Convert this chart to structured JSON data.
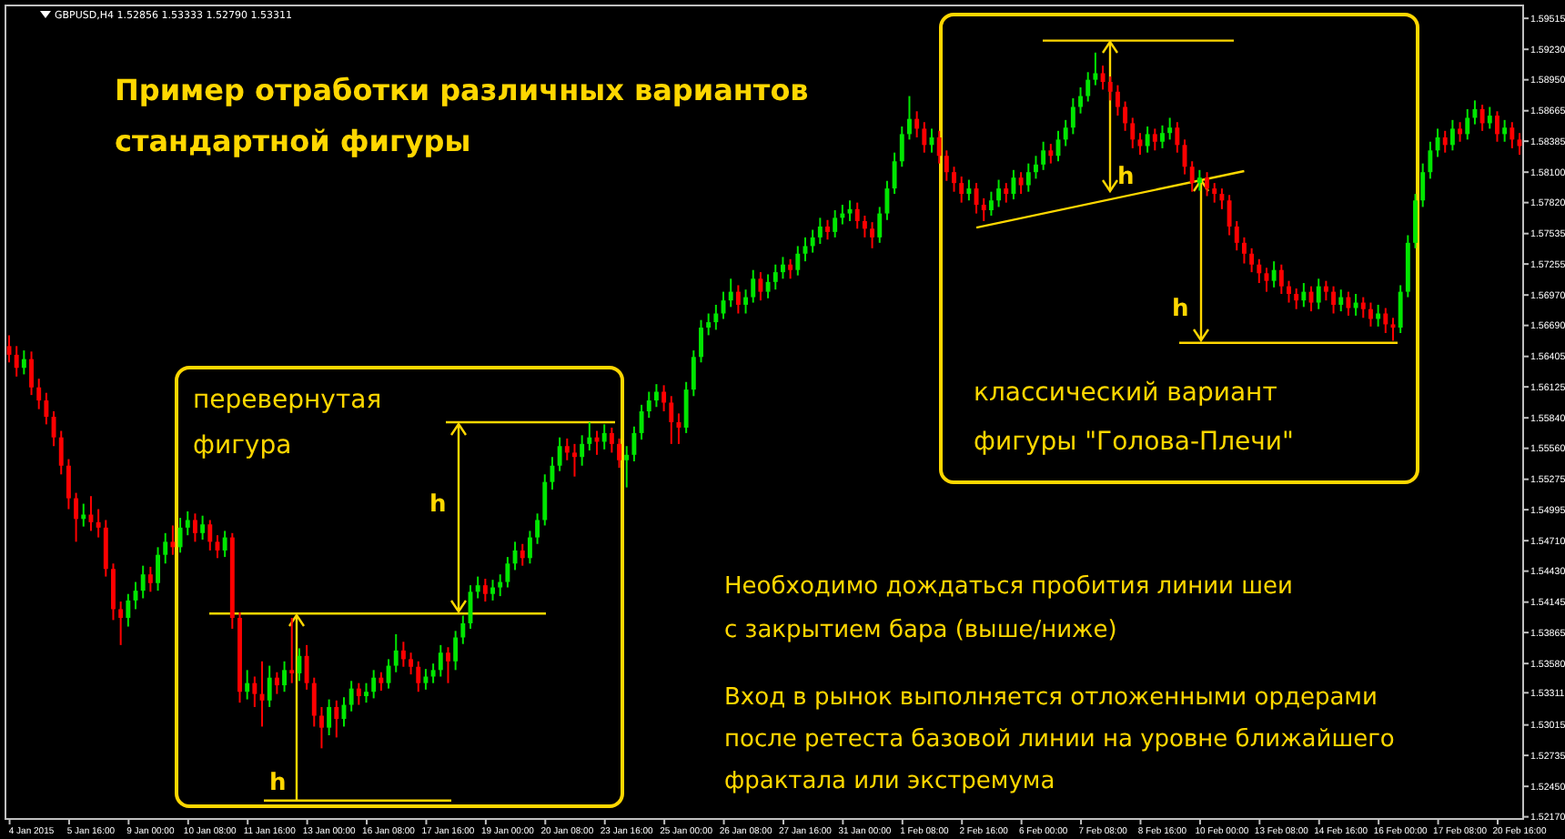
{
  "chart_data": {
    "type": "candlestick",
    "title": "Пример отработки различных вариантов\nстандартной фигуры",
    "annotations": [
      "GBPUSD,H4  1.52856 1.53333 1.52790 1.53311",
      "перевернутая\nфигура",
      "классический вариант\nфигуры \"Голова-Плечи\"",
      "Необходимо дождаться пробития линии шеи\nс закрытием бара (выше/ниже)",
      "Вход в рынок выполняется отложенными ордерами\nпосле ретеста базовой линии на уровне ближайшего\nфрактала или экстремума",
      "h",
      {
        "text": "h",
        "y": 1.5232
      },
      {
        "text": "h",
        "y": 1.5784
      },
      {
        "text": "h",
        "y": 1.5653
      }
    ],
    "series": [
      {
        "type": "line",
        "color": "#ffd700",
        "values": [
          null,
          null,
          null,
          null,
          null,
          null,
          null,
          null,
          null,
          null,
          null,
          null,
          null,
          null,
          null,
          null,
          null,
          null,
          null,
          null,
          null,
          null,
          null,
          null,
          null,
          null,
          null,
          null,
          null,
          null,
          null,
          null,
          null,
          null,
          null,
          null,
          null,
          null,
          null,
          null,
          null,
          null,
          null,
          null,
          null,
          null,
          null,
          null,
          null,
          null,
          null,
          null,
          null,
          null,
          null,
          null,
          null,
          null,
          null,
          null,
          null,
          null,
          null,
          null,
          null,
          null,
          null,
          null,
          null,
          null,
          null,
          null,
          null,
          null,
          null,
          null,
          null,
          null,
          null,
          null,
          null,
          null,
          null,
          null,
          null,
          null,
          null,
          null,
          null,
          null,
          null,
          null,
          null,
          null,
          null,
          null,
          null,
          null,
          null,
          null,
          null,
          null,
          null,
          null,
          null,
          null,
          null,
          null,
          null,
          null,
          null,
          null,
          null,
          null,
          null,
          null,
          null,
          null,
          null,
          null,
          null,
          null,
          null,
          null,
          null,
          null,
          null,
          null,
          null,
          null,
          1.5759,
          null,
          null,
          null,
          null,
          null,
          null,
          null,
          null,
          null,
          null,
          null,
          null,
          null,
          null,
          null,
          null,
          null,
          null,
          null,
          null,
          null,
          null,
          null,
          null,
          null,
          null,
          null,
          null,
          null,
          null,
          null,
          null,
          null,
          null,
          null,
          1.5811,
          null,
          null,
          null,
          null,
          null,
          null,
          null,
          null,
          null,
          null,
          null,
          null,
          null,
          null,
          null,
          null,
          null,
          null,
          null,
          null,
          null,
          null,
          null,
          null,
          null,
          null,
          null,
          null,
          null,
          null,
          null,
          null,
          null,
          null,
          null,
          null,
          null
        ]
      }
    ],
    "categories": [
      null,
      null,
      null,
      "4 Jan 2015",
      null,
      null,
      null,
      null,
      null,
      null,
      null,
      "5 Jan 16:00",
      null,
      null,
      null,
      null,
      null,
      null,
      null,
      "9 Jan 00:00",
      null,
      null,
      null,
      null,
      null,
      null,
      null,
      "10 Jan 08:00",
      null,
      null,
      null,
      null,
      null,
      null,
      null,
      "11 Jan 16:00",
      null,
      null,
      null,
      null,
      null,
      null,
      null,
      "13 Jan 00:00",
      null,
      null,
      null,
      null,
      null,
      null,
      null,
      "16 Jan 08:00",
      null,
      null,
      null,
      null,
      null,
      null,
      null,
      "17 Jan 16:00",
      null,
      null,
      null,
      null,
      null,
      null,
      null,
      "19 Jan 00:00",
      null,
      null,
      null,
      null,
      null,
      null,
      null,
      "20 Jan 08:00",
      null,
      null,
      null,
      null,
      null,
      null,
      null,
      "23 Jan 16:00",
      null,
      null,
      null,
      null,
      null,
      null,
      null,
      "25 Jan 00:00",
      null,
      null,
      null,
      null,
      null,
      null,
      null,
      "26 Jan 08:00",
      null,
      null,
      null,
      null,
      null,
      null,
      null,
      "27 Jan 16:00",
      null,
      null,
      null,
      null,
      null,
      null,
      null,
      "31 Jan 00:00",
      null,
      null,
      null,
      null,
      null,
      null,
      null,
      "1 Feb 08:00",
      null,
      null,
      null,
      null,
      null,
      null,
      null,
      "2 Feb 16:00",
      null,
      null,
      null,
      null,
      null,
      null,
      null,
      "6 Feb 00:00",
      null,
      null,
      null,
      null,
      null,
      null,
      null,
      "7 Feb 08:00",
      null,
      null,
      null,
      null,
      null,
      null,
      null,
      "8 Feb 16:00",
      null,
      null,
      null,
      null,
      null,
      null,
      null,
      "10 Feb 00:00",
      null,
      null,
      null,
      null,
      null,
      null,
      null,
      "13 Feb 08:00",
      null,
      null,
      null,
      null,
      null,
      null,
      null,
      "14 Feb 16:00",
      null,
      null,
      null,
      null,
      null,
      null,
      null,
      "16 Feb 00:00",
      null,
      null,
      null,
      null,
      null,
      null,
      null,
      "17 Feb 08:00",
      null,
      null,
      null,
      null,
      null,
      null,
      null,
      "20 Feb 16:00"
    ],
    "ohlc": [
      [
        1.565,
        1.566,
        1.5635,
        1.5642
      ],
      [
        1.5642,
        1.565,
        1.5622,
        1.563
      ],
      [
        1.563,
        1.5646,
        1.5624,
        1.5638
      ],
      [
        1.5638,
        1.5645,
        1.5605,
        1.5612
      ],
      [
        1.5612,
        1.562,
        1.5592,
        1.56
      ],
      [
        1.56,
        1.5607,
        1.5578,
        1.5585
      ],
      [
        1.5585,
        1.559,
        1.5558,
        1.5566
      ],
      [
        1.5566,
        1.5572,
        1.5532,
        1.554
      ],
      [
        1.554,
        1.5546,
        1.55,
        1.551
      ],
      [
        1.551,
        1.5515,
        1.547,
        1.5491
      ],
      [
        1.5491,
        1.5505,
        1.5484,
        1.5495
      ],
      [
        1.5495,
        1.5512,
        1.548,
        1.5488
      ],
      [
        1.5488,
        1.55,
        1.5474,
        1.5483
      ],
      [
        1.5483,
        1.549,
        1.5438,
        1.5445
      ],
      [
        1.5445,
        1.545,
        1.5398,
        1.5408
      ],
      [
        1.5408,
        1.5415,
        1.5375,
        1.54
      ],
      [
        1.54,
        1.5422,
        1.5392,
        1.5416
      ],
      [
        1.5416,
        1.5433,
        1.5408,
        1.5425
      ],
      [
        1.5425,
        1.5448,
        1.5418,
        1.544
      ],
      [
        1.544,
        1.5447,
        1.5424,
        1.5432
      ],
      [
        1.5432,
        1.5465,
        1.5425,
        1.5458
      ],
      [
        1.5458,
        1.5478,
        1.545,
        1.547
      ],
      [
        1.547,
        1.5485,
        1.5458,
        1.5465
      ],
      [
        1.5465,
        1.5492,
        1.546,
        1.5483
      ],
      [
        1.5483,
        1.5498,
        1.5476,
        1.549
      ],
      [
        1.549,
        1.5496,
        1.547,
        1.5478
      ],
      [
        1.5478,
        1.5494,
        1.5472,
        1.5486
      ],
      [
        1.5486,
        1.549,
        1.5462,
        1.547
      ],
      [
        1.547,
        1.5476,
        1.5455,
        1.5462
      ],
      [
        1.5462,
        1.548,
        1.5456,
        1.5474
      ],
      [
        1.5474,
        1.5478,
        1.539,
        1.54
      ],
      [
        1.54,
        1.5405,
        1.5322,
        1.5332
      ],
      [
        1.5332,
        1.5352,
        1.5325,
        1.534
      ],
      [
        1.534,
        1.5346,
        1.5318,
        1.533
      ],
      [
        1.533,
        1.536,
        1.53,
        1.5324
      ],
      [
        1.5324,
        1.5356,
        1.5318,
        1.5345
      ],
      [
        1.5345,
        1.535,
        1.533,
        1.5338
      ],
      [
        1.5338,
        1.536,
        1.5332,
        1.5352
      ],
      [
        1.5352,
        1.54,
        1.534,
        1.5349
      ],
      [
        1.5349,
        1.5372,
        1.5342,
        1.5365
      ],
      [
        1.5365,
        1.5375,
        1.5334,
        1.534
      ],
      [
        1.534,
        1.5345,
        1.53,
        1.531
      ],
      [
        1.531,
        1.5318,
        1.528,
        1.5299
      ],
      [
        1.5299,
        1.5325,
        1.5292,
        1.5318
      ],
      [
        1.5318,
        1.5324,
        1.529,
        1.5307
      ],
      [
        1.5307,
        1.5327,
        1.53,
        1.532
      ],
      [
        1.532,
        1.5342,
        1.5314,
        1.5335
      ],
      [
        1.5335,
        1.534,
        1.532,
        1.5328
      ],
      [
        1.5328,
        1.534,
        1.5322,
        1.5332
      ],
      [
        1.5332,
        1.5352,
        1.5326,
        1.5345
      ],
      [
        1.5345,
        1.535,
        1.5333,
        1.534
      ],
      [
        1.534,
        1.5362,
        1.5335,
        1.5356
      ],
      [
        1.5356,
        1.5385,
        1.535,
        1.537
      ],
      [
        1.537,
        1.5378,
        1.5355,
        1.5362
      ],
      [
        1.5362,
        1.5368,
        1.5348,
        1.5355
      ],
      [
        1.5355,
        1.536,
        1.5332,
        1.534
      ],
      [
        1.534,
        1.5353,
        1.5334,
        1.5346
      ],
      [
        1.5346,
        1.5358,
        1.534,
        1.5352
      ],
      [
        1.5352,
        1.5375,
        1.5346,
        1.5368
      ],
      [
        1.5368,
        1.5373,
        1.534,
        1.536
      ],
      [
        1.536,
        1.5388,
        1.5352,
        1.5382
      ],
      [
        1.5382,
        1.5402,
        1.5376,
        1.5395
      ],
      [
        1.5395,
        1.543,
        1.539,
        1.5424
      ],
      [
        1.5424,
        1.5438,
        1.5418,
        1.543
      ],
      [
        1.543,
        1.5436,
        1.5415,
        1.5422
      ],
      [
        1.5422,
        1.5435,
        1.5416,
        1.5428
      ],
      [
        1.5428,
        1.544,
        1.542,
        1.5433
      ],
      [
        1.5433,
        1.5456,
        1.5428,
        1.545
      ],
      [
        1.545,
        1.547,
        1.5444,
        1.5462
      ],
      [
        1.5462,
        1.5468,
        1.5448,
        1.5455
      ],
      [
        1.5455,
        1.548,
        1.545,
        1.5474
      ],
      [
        1.5474,
        1.5496,
        1.5468,
        1.549
      ],
      [
        1.549,
        1.5532,
        1.5485,
        1.5525
      ],
      [
        1.5525,
        1.5548,
        1.5518,
        1.554
      ],
      [
        1.554,
        1.5566,
        1.5535,
        1.5558
      ],
      [
        1.5558,
        1.5565,
        1.5545,
        1.5552
      ],
      [
        1.5552,
        1.556,
        1.553,
        1.5548
      ],
      [
        1.5548,
        1.5568,
        1.554,
        1.556
      ],
      [
        1.556,
        1.558,
        1.5554,
        1.5566
      ],
      [
        1.5566,
        1.5572,
        1.555,
        1.5562
      ],
      [
        1.5562,
        1.5578,
        1.5555,
        1.557
      ],
      [
        1.557,
        1.5575,
        1.5552,
        1.556
      ],
      [
        1.556,
        1.5565,
        1.5538,
        1.5545
      ],
      [
        1.5545,
        1.5558,
        1.552,
        1.555
      ],
      [
        1.555,
        1.5576,
        1.5544,
        1.557
      ],
      [
        1.557,
        1.5596,
        1.5564,
        1.559
      ],
      [
        1.559,
        1.5608,
        1.5584,
        1.56
      ],
      [
        1.56,
        1.5615,
        1.5594,
        1.5608
      ],
      [
        1.5608,
        1.5614,
        1.559,
        1.5598
      ],
      [
        1.5598,
        1.5604,
        1.556,
        1.558
      ],
      [
        1.558,
        1.5588,
        1.556,
        1.5575
      ],
      [
        1.5575,
        1.5617,
        1.557,
        1.561
      ],
      [
        1.561,
        1.5646,
        1.5604,
        1.564
      ],
      [
        1.564,
        1.5674,
        1.5635,
        1.5667
      ],
      [
        1.5667,
        1.568,
        1.566,
        1.5672
      ],
      [
        1.5672,
        1.5688,
        1.5665,
        1.568
      ],
      [
        1.568,
        1.57,
        1.5675,
        1.5692
      ],
      [
        1.5692,
        1.5712,
        1.5686,
        1.57
      ],
      [
        1.57,
        1.5706,
        1.568,
        1.5688
      ],
      [
        1.5688,
        1.5702,
        1.568,
        1.5695
      ],
      [
        1.5695,
        1.572,
        1.569,
        1.5712
      ],
      [
        1.5712,
        1.5718,
        1.5692,
        1.57
      ],
      [
        1.57,
        1.5716,
        1.5694,
        1.5709
      ],
      [
        1.5709,
        1.5725,
        1.5702,
        1.5718
      ],
      [
        1.5718,
        1.5732,
        1.5712,
        1.5725
      ],
      [
        1.5725,
        1.573,
        1.5712,
        1.572
      ],
      [
        1.572,
        1.5742,
        1.5715,
        1.5735
      ],
      [
        1.5735,
        1.575,
        1.5728,
        1.5742
      ],
      [
        1.5742,
        1.5757,
        1.5736,
        1.575
      ],
      [
        1.575,
        1.5768,
        1.5744,
        1.576
      ],
      [
        1.576,
        1.5766,
        1.5748,
        1.5755
      ],
      [
        1.5755,
        1.5775,
        1.575,
        1.5768
      ],
      [
        1.5768,
        1.578,
        1.5762,
        1.5772
      ],
      [
        1.5772,
        1.5784,
        1.5765,
        1.5776
      ],
      [
        1.5776,
        1.5782,
        1.5758,
        1.5765
      ],
      [
        1.5765,
        1.577,
        1.575,
        1.5758
      ],
      [
        1.5758,
        1.5764,
        1.574,
        1.575
      ],
      [
        1.575,
        1.5778,
        1.5745,
        1.5772
      ],
      [
        1.5772,
        1.5802,
        1.5766,
        1.5795
      ],
      [
        1.5795,
        1.5828,
        1.579,
        1.582
      ],
      [
        1.582,
        1.5852,
        1.5815,
        1.5845
      ],
      [
        1.5845,
        1.588,
        1.584,
        1.5859
      ],
      [
        1.5859,
        1.5866,
        1.5842,
        1.585
      ],
      [
        1.585,
        1.5856,
        1.5828,
        1.5835
      ],
      [
        1.5835,
        1.585,
        1.5828,
        1.5842
      ],
      [
        1.5842,
        1.5848,
        1.5818,
        1.5825
      ],
      [
        1.5825,
        1.583,
        1.5802,
        1.581
      ],
      [
        1.581,
        1.5815,
        1.5792,
        1.58
      ],
      [
        1.58,
        1.5806,
        1.5782,
        1.579
      ],
      [
        1.579,
        1.5803,
        1.5784,
        1.5795
      ],
      [
        1.5795,
        1.58,
        1.5772,
        1.578
      ],
      [
        1.578,
        1.5786,
        1.5765,
        1.5775
      ],
      [
        1.5775,
        1.5792,
        1.577,
        1.5784
      ],
      [
        1.5784,
        1.5803,
        1.5778,
        1.5795
      ],
      [
        1.5795,
        1.58,
        1.5782,
        1.579
      ],
      [
        1.579,
        1.5812,
        1.5785,
        1.5805
      ],
      [
        1.5805,
        1.581,
        1.579,
        1.5798
      ],
      [
        1.5798,
        1.5818,
        1.5792,
        1.581
      ],
      [
        1.581,
        1.5825,
        1.5804,
        1.5817
      ],
      [
        1.5817,
        1.5838,
        1.5812,
        1.583
      ],
      [
        1.583,
        1.5836,
        1.5818,
        1.5825
      ],
      [
        1.5825,
        1.5848,
        1.582,
        1.584
      ],
      [
        1.584,
        1.5858,
        1.5834,
        1.5851
      ],
      [
        1.5851,
        1.5878,
        1.5845,
        1.587
      ],
      [
        1.587,
        1.5888,
        1.5864,
        1.588
      ],
      [
        1.588,
        1.5902,
        1.5875,
        1.5895
      ],
      [
        1.5895,
        1.592,
        1.589,
        1.5901
      ],
      [
        1.5901,
        1.5908,
        1.5886,
        1.5893
      ],
      [
        1.5893,
        1.5898,
        1.5876,
        1.5884
      ],
      [
        1.5884,
        1.589,
        1.5862,
        1.587
      ],
      [
        1.587,
        1.5875,
        1.5848,
        1.5855
      ],
      [
        1.5855,
        1.586,
        1.5832,
        1.584
      ],
      [
        1.584,
        1.5846,
        1.5826,
        1.5834
      ],
      [
        1.5834,
        1.5852,
        1.5828,
        1.5845
      ],
      [
        1.5845,
        1.585,
        1.583,
        1.5838
      ],
      [
        1.5838,
        1.5853,
        1.5832,
        1.5846
      ],
      [
        1.5846,
        1.586,
        1.584,
        1.5851
      ],
      [
        1.5851,
        1.5856,
        1.5828,
        1.5835
      ],
      [
        1.5835,
        1.584,
        1.5808,
        1.5815
      ],
      [
        1.5815,
        1.582,
        1.5792,
        1.58
      ],
      [
        1.58,
        1.5812,
        1.5793,
        1.5805
      ],
      [
        1.5805,
        1.581,
        1.5788,
        1.5795
      ],
      [
        1.5795,
        1.58,
        1.5782,
        1.579
      ],
      [
        1.579,
        1.5795,
        1.5776,
        1.5784
      ],
      [
        1.5784,
        1.5789,
        1.5752,
        1.576
      ],
      [
        1.576,
        1.5765,
        1.5738,
        1.5745
      ],
      [
        1.5745,
        1.575,
        1.5726,
        1.5735
      ],
      [
        1.5735,
        1.574,
        1.5718,
        1.5725
      ],
      [
        1.5725,
        1.573,
        1.5708,
        1.5717
      ],
      [
        1.5717,
        1.5722,
        1.57,
        1.571
      ],
      [
        1.571,
        1.5728,
        1.5704,
        1.572
      ],
      [
        1.572,
        1.5725,
        1.5698,
        1.5705
      ],
      [
        1.5705,
        1.571,
        1.569,
        1.5698
      ],
      [
        1.5698,
        1.5703,
        1.5684,
        1.5692
      ],
      [
        1.5692,
        1.5708,
        1.5686,
        1.57
      ],
      [
        1.57,
        1.5705,
        1.5682,
        1.569
      ],
      [
        1.569,
        1.5712,
        1.5684,
        1.5705
      ],
      [
        1.5705,
        1.571,
        1.5692,
        1.57
      ],
      [
        1.57,
        1.5705,
        1.568,
        1.5688
      ],
      [
        1.5688,
        1.5702,
        1.5682,
        1.5695
      ],
      [
        1.5695,
        1.57,
        1.5678,
        1.5685
      ],
      [
        1.5685,
        1.5698,
        1.5678,
        1.569
      ],
      [
        1.569,
        1.5695,
        1.5676,
        1.5684
      ],
      [
        1.5684,
        1.569,
        1.5668,
        1.5675
      ],
      [
        1.5675,
        1.5688,
        1.5668,
        1.568
      ],
      [
        1.568,
        1.5685,
        1.5662,
        1.567
      ],
      [
        1.567,
        1.5676,
        1.5655,
        1.5667
      ],
      [
        1.5667,
        1.5706,
        1.5662,
        1.57
      ],
      [
        1.57,
        1.5752,
        1.5695,
        1.5745
      ],
      [
        1.5745,
        1.579,
        1.574,
        1.5784
      ],
      [
        1.5784,
        1.5818,
        1.5778,
        1.581
      ],
      [
        1.581,
        1.5838,
        1.5804,
        1.583
      ],
      [
        1.583,
        1.585,
        1.5824,
        1.5842
      ],
      [
        1.5842,
        1.5848,
        1.5828,
        1.5835
      ],
      [
        1.5835,
        1.5858,
        1.583,
        1.585
      ],
      [
        1.585,
        1.5856,
        1.5838,
        1.5845
      ],
      [
        1.5845,
        1.5868,
        1.584,
        1.586
      ],
      [
        1.586,
        1.5876,
        1.5854,
        1.5868
      ],
      [
        1.5868,
        1.5872,
        1.5848,
        1.5855
      ],
      [
        1.5855,
        1.587,
        1.585,
        1.5862
      ],
      [
        1.5862,
        1.5866,
        1.5838,
        1.5845
      ],
      [
        1.5845,
        1.5858,
        1.5838,
        1.5851
      ],
      [
        1.5851,
        1.5856,
        1.5832,
        1.584
      ],
      [
        1.584,
        1.5846,
        1.5826,
        1.5834
      ]
    ],
    "ylim": [
      1.5215,
      1.596
    ],
    "yticks": [
      {
        "value": 1.59515,
        "label": "1.59515"
      },
      {
        "value": 1.5923,
        "label": "1.59230"
      },
      {
        "value": 1.5895,
        "label": "1.58950"
      },
      {
        "value": 1.58665,
        "label": "1.58665"
      },
      {
        "value": 1.58385,
        "label": "1.58385"
      },
      {
        "value": 1.581,
        "label": "1.58100"
      },
      {
        "value": 1.5782,
        "label": "1.57820"
      },
      {
        "value": 1.57535,
        "label": "1.57535"
      },
      {
        "value": 1.57255,
        "label": "1.57255"
      },
      {
        "value": 1.5697,
        "label": "1.56970"
      },
      {
        "value": 1.5669,
        "label": "1.56690"
      },
      {
        "value": 1.56405,
        "label": "1.56405"
      },
      {
        "value": 1.56125,
        "label": "1.56125"
      },
      {
        "value": 1.5584,
        "label": "1.55840"
      },
      {
        "value": 1.5556,
        "label": "1.55560"
      },
      {
        "value": 1.55275,
        "label": "1.55275"
      },
      {
        "value": 1.54995,
        "label": "1.54995"
      },
      {
        "value": 1.5471,
        "label": "1.54710"
      },
      {
        "value": 1.5443,
        "label": "1.54430"
      },
      {
        "value": 1.54145,
        "label": "1.54145"
      },
      {
        "value": 1.53865,
        "label": "1.53865"
      },
      {
        "value": 1.5358,
        "label": "1.53580"
      },
      {
        "value": 1.53311,
        "label": "1.53311"
      },
      {
        "value": 1.53015,
        "label": "1.53015"
      },
      {
        "value": 1.52735,
        "label": "1.52735"
      },
      {
        "value": 1.5245,
        "label": "1.52450"
      },
      {
        "value": 1.5217,
        "label": "1.52170"
      }
    ],
    "ref_lines": [
      {
        "axis": "y",
        "value": 1.558,
        "color": "#ffd700"
      },
      {
        "axis": "y",
        "value": 1.5404,
        "color": "#ffd700"
      },
      {
        "axis": "y",
        "value": 1.5232,
        "color": "#ffd700"
      },
      {
        "axis": "y",
        "value": 1.5931,
        "color": "#ffd700"
      },
      {
        "axis": "y",
        "value": 1.5653,
        "color": "#ffd700"
      }
    ],
    "grid": false
  }
}
